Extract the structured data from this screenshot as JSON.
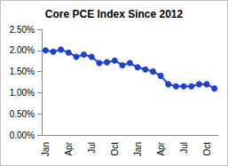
{
  "chart_data": {
    "type": "line",
    "title": "Core PCE Index Since 2012",
    "categories": [
      "Jan",
      null,
      null,
      "Apr",
      null,
      null,
      "Jul",
      null,
      null,
      "Oct",
      null,
      null,
      "Jan",
      null,
      null,
      "Apr",
      null,
      null,
      "Jul",
      null,
      null,
      "Oct",
      null
    ],
    "values": [
      2.0,
      1.97,
      2.02,
      1.95,
      1.85,
      1.9,
      1.85,
      1.7,
      1.72,
      1.76,
      1.65,
      1.7,
      1.6,
      1.55,
      1.5,
      1.4,
      1.2,
      1.15,
      1.15,
      1.15,
      1.2,
      1.2,
      1.1
    ],
    "color": "#2040d0",
    "marker": "circle",
    "line_style": "solid",
    "ylim": [
      0,
      2.5
    ],
    "yticks": [
      {
        "value": 0,
        "label": "0.00%"
      },
      {
        "value": 0.5,
        "label": "0.50%"
      },
      {
        "value": 1,
        "label": "1.00%"
      },
      {
        "value": 1.5,
        "label": "1.50%"
      },
      {
        "value": 2,
        "label": "2.00%"
      },
      {
        "value": 2.5,
        "label": "2.50%"
      }
    ],
    "grid": false
  }
}
